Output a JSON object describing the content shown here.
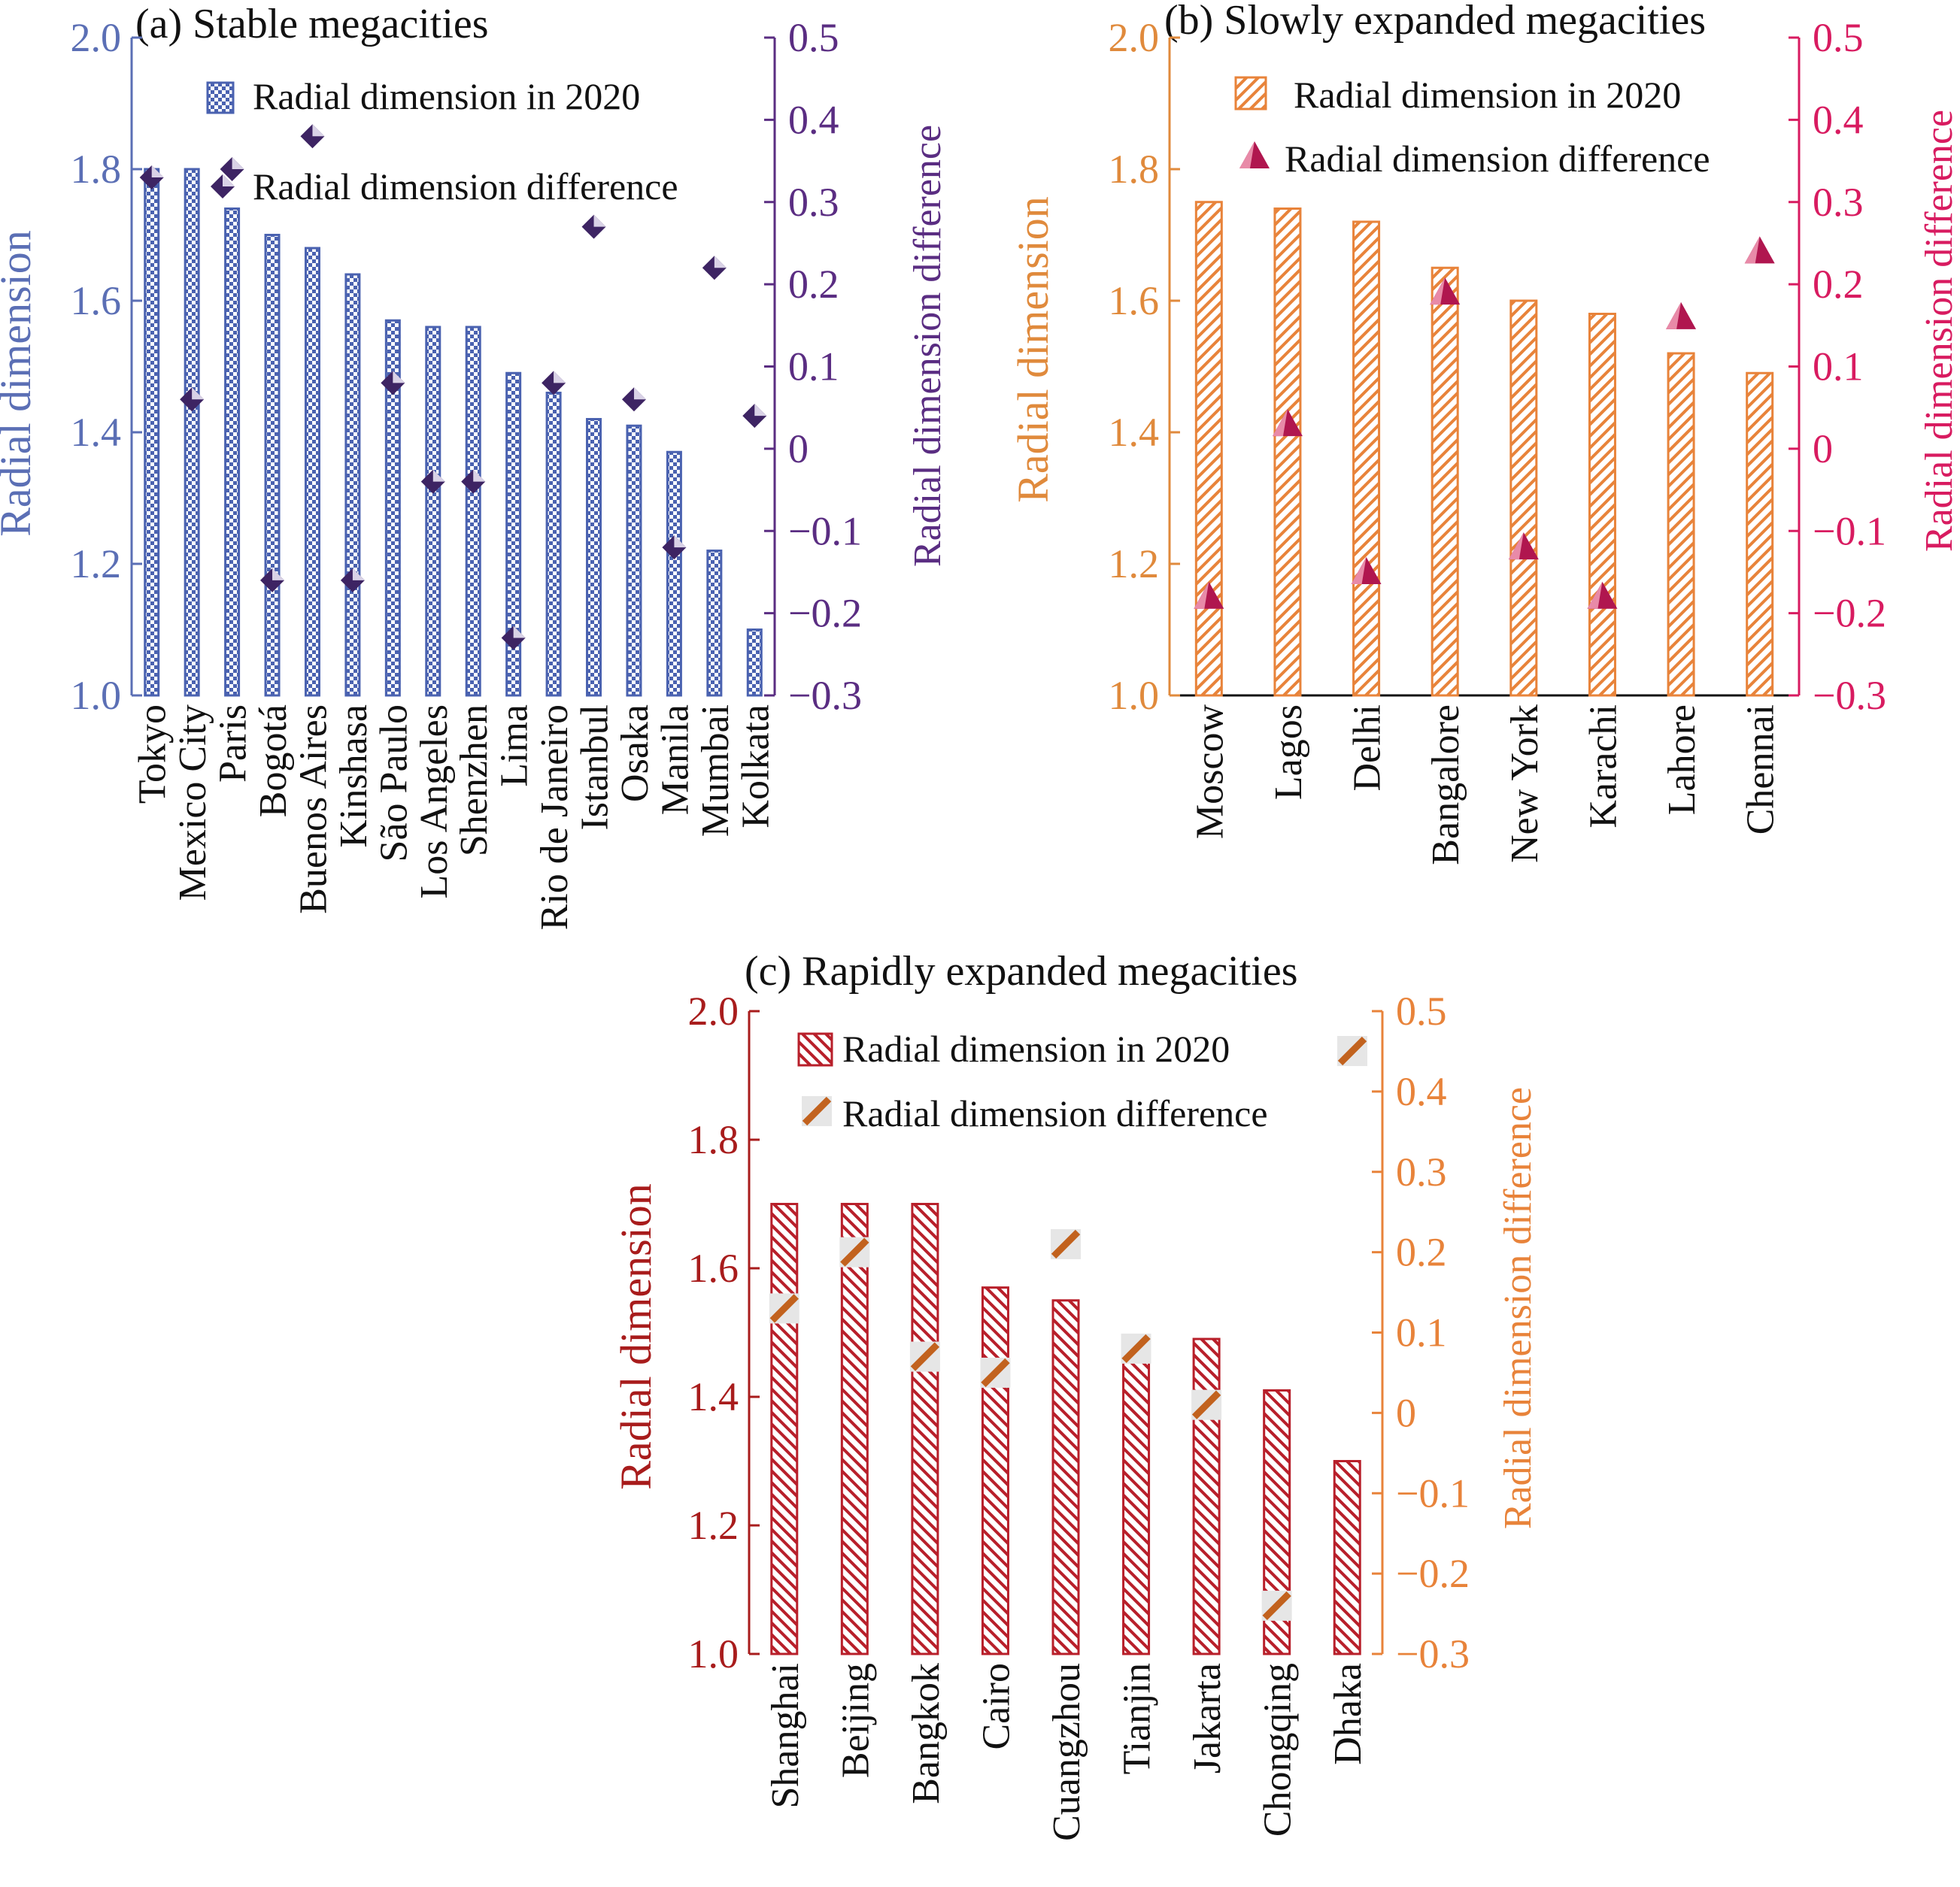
{
  "chart_data": [
    {
      "id": "a",
      "type": "bar",
      "title": "(a) Stable megacities",
      "ylabel": "Radial dimension",
      "y2label": "Radial dimension difference",
      "ylim": [
        1.0,
        2.0
      ],
      "y2lim": [
        -0.3,
        0.5
      ],
      "yticks": [
        "1.0",
        "1.2",
        "1.4",
        "1.6",
        "1.8",
        "2.0"
      ],
      "y2ticks": [
        "−0.3",
        "−0.2",
        "−0.1",
        "0",
        "0.1",
        "0.2",
        "0.3",
        "0.4",
        "0.5"
      ],
      "legend": [
        "Radial dimension in 2020",
        "Radial dimension difference"
      ],
      "legend_position": "top-right",
      "colors": {
        "axis_left": "#5b6fb5",
        "axis_right": "#5a2d82",
        "bar": "#4a62b0",
        "marker": "#3d2463"
      },
      "marker_shape": "diamond",
      "categories": [
        "Tokyo",
        "Mexico City",
        "Paris",
        "Bogotá",
        "Buenos Aires",
        "Kinshasa",
        "São Paulo",
        "Los Angeles",
        "Shenzhen",
        "Lima",
        "Rio de Janeiro",
        "Istanbul",
        "Osaka",
        "Manila",
        "Mumbai",
        "Kolkata"
      ],
      "series": [
        {
          "name": "Radial dimension in 2020",
          "axis": "left",
          "values": [
            1.8,
            1.8,
            1.74,
            1.7,
            1.68,
            1.64,
            1.57,
            1.56,
            1.56,
            1.49,
            1.46,
            1.42,
            1.41,
            1.37,
            1.22,
            1.1
          ]
        },
        {
          "name": "Radial dimension difference",
          "axis": "right",
          "values": [
            0.33,
            0.06,
            0.34,
            -0.16,
            0.38,
            -0.16,
            0.08,
            -0.04,
            -0.04,
            -0.23,
            0.08,
            0.27,
            0.06,
            -0.12,
            0.22,
            0.04
          ]
        }
      ]
    },
    {
      "id": "b",
      "type": "bar",
      "title": "(b) Slowly expanded megacities",
      "ylabel": "Radial dimension",
      "y2label": "Radial dimension difference",
      "ylim": [
        1.0,
        2.0
      ],
      "y2lim": [
        -0.3,
        0.5
      ],
      "yticks": [
        "1.0",
        "1.2",
        "1.4",
        "1.6",
        "1.8",
        "2.0"
      ],
      "y2ticks": [
        "−0.3",
        "−0.2",
        "−0.1",
        "0",
        "0.1",
        "0.2",
        "0.3",
        "0.4",
        "0.5"
      ],
      "legend": [
        "Radial dimension in 2020",
        "Radial dimension difference"
      ],
      "legend_position": "top-right",
      "colors": {
        "axis_left": "#e08a3c",
        "axis_right": "#d81b60",
        "bar": "#e8833a",
        "marker": "#b0164f"
      },
      "marker_shape": "triangle",
      "categories": [
        "Moscow",
        "Lagos",
        "Delhi",
        "Bangalore",
        "New York",
        "Karachi",
        "Lahore",
        "Chennai"
      ],
      "series": [
        {
          "name": "Radial dimension in 2020",
          "axis": "left",
          "values": [
            1.75,
            1.74,
            1.72,
            1.65,
            1.6,
            1.58,
            1.52,
            1.49
          ]
        },
        {
          "name": "Radial dimension difference",
          "axis": "right",
          "values": [
            -0.18,
            0.03,
            -0.15,
            0.19,
            -0.12,
            -0.18,
            0.16,
            0.24
          ]
        }
      ]
    },
    {
      "id": "c",
      "type": "bar",
      "title": "(c) Rapidly expanded megacities",
      "ylabel": "Radial dimension",
      "y2label": "Radial dimension difference",
      "ylim": [
        1.0,
        2.0
      ],
      "y2lim": [
        -0.3,
        0.5
      ],
      "yticks": [
        "1.0",
        "1.2",
        "1.4",
        "1.6",
        "1.8",
        "2.0"
      ],
      "y2ticks": [
        "−0.3",
        "−0.2",
        "−0.1",
        "0",
        "0.1",
        "0.2",
        "0.3",
        "0.4",
        "0.5"
      ],
      "legend": [
        "Radial dimension in 2020",
        "Radial dimension difference"
      ],
      "legend_position": "top-right",
      "colors": {
        "axis_left": "#a81c1c",
        "axis_right": "#e8833a",
        "bar": "#b81f2a",
        "marker": "#c2621e"
      },
      "marker_shape": "slash",
      "categories": [
        "Shanghai",
        "Beijing",
        "Bangkok",
        "Cairo",
        "Cuangzhou",
        "Tianjin",
        "Jakarta",
        "Chongqing",
        "Dhaka"
      ],
      "series": [
        {
          "name": "Radial dimension in 2020",
          "axis": "left",
          "values": [
            1.7,
            1.7,
            1.7,
            1.57,
            1.55,
            1.47,
            1.49,
            1.41,
            1.3
          ]
        },
        {
          "name": "Radial dimension difference",
          "axis": "right",
          "values": [
            0.13,
            0.2,
            0.07,
            0.05,
            0.21,
            0.08,
            0.01,
            -0.24,
            null
          ]
        }
      ]
    }
  ]
}
